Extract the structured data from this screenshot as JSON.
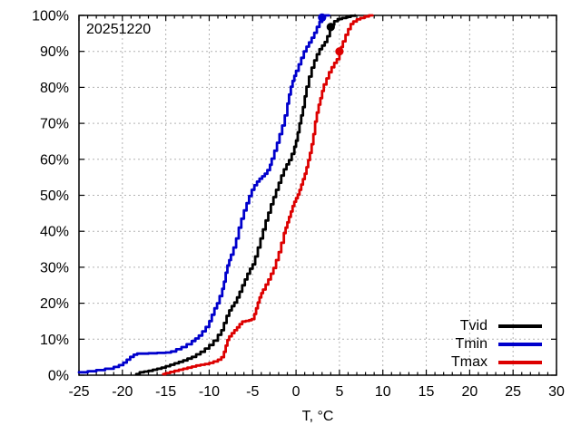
{
  "chart_data": {
    "type": "line",
    "title": "20251220",
    "xlabel": "T, °C",
    "ylabel": "",
    "xlim": [
      -25,
      30
    ],
    "ylim": [
      0,
      100
    ],
    "grid": true,
    "grid_color": "#b3b3b3",
    "axis_color": "#000000",
    "legend_position": "bottom-right",
    "x_tick_values": [
      -25,
      -20,
      -15,
      -10,
      -5,
      0,
      5,
      10,
      15,
      20,
      25,
      30
    ],
    "x_tick_labels": [
      "-25",
      "-20",
      "-15",
      "-10",
      "-5",
      "0",
      "5",
      "10",
      "15",
      "20",
      "25",
      "30"
    ],
    "x_minor_step": 1,
    "y_tick_values": [
      0,
      10,
      20,
      30,
      40,
      50,
      60,
      70,
      80,
      90,
      100
    ],
    "y_tick_labels": [
      "0%",
      "10%",
      "20%",
      "30%",
      "40%",
      "50%",
      "60%",
      "70%",
      "80%",
      "90%",
      "100%"
    ],
    "series": [
      {
        "name": "Tvid",
        "color": "#000000",
        "marker": {
          "t": 4.0,
          "pct": 96.8
        },
        "points": [
          [
            -18.4,
            0.3
          ],
          [
            -18,
            0.8
          ],
          [
            -17.5,
            1
          ],
          [
            -17,
            1.2
          ],
          [
            -16.5,
            1.5
          ],
          [
            -16,
            1.8
          ],
          [
            -15.5,
            2.1
          ],
          [
            -15,
            2.5
          ],
          [
            -14.5,
            2.9
          ],
          [
            -14,
            3.3
          ],
          [
            -13.5,
            3.7
          ],
          [
            -13,
            4.1
          ],
          [
            -12.5,
            4.6
          ],
          [
            -12,
            5.1
          ],
          [
            -11.5,
            5.8
          ],
          [
            -11,
            6.5
          ],
          [
            -10.5,
            7.4
          ],
          [
            -10,
            8.4
          ],
          [
            -9.5,
            9.6
          ],
          [
            -9,
            11.2
          ],
          [
            -8.6,
            12.5
          ],
          [
            -8.3,
            14.5
          ],
          [
            -8,
            16.5
          ],
          [
            -7.7,
            18
          ],
          [
            -7.4,
            19.2
          ],
          [
            -7.1,
            20.2
          ],
          [
            -6.8,
            21.6
          ],
          [
            -6.5,
            23.2
          ],
          [
            -6.2,
            25
          ],
          [
            -5.9,
            26.6
          ],
          [
            -5.6,
            28.2
          ],
          [
            -5.3,
            29.6
          ],
          [
            -5,
            30.8
          ],
          [
            -4.7,
            33
          ],
          [
            -4.4,
            35.5
          ],
          [
            -4.1,
            38
          ],
          [
            -3.8,
            40.5
          ],
          [
            -3.5,
            43
          ],
          [
            -3.2,
            45.2
          ],
          [
            -2.9,
            47.5
          ],
          [
            -2.6,
            49.5
          ],
          [
            -2.3,
            51.5
          ],
          [
            -2,
            53.5
          ],
          [
            -1.7,
            55.5
          ],
          [
            -1.4,
            57.2
          ],
          [
            -1.1,
            58.6
          ],
          [
            -0.8,
            59.8
          ],
          [
            -0.5,
            61.5
          ],
          [
            -0.2,
            63.5
          ],
          [
            0,
            65.2
          ],
          [
            0.2,
            67.5
          ],
          [
            0.4,
            70
          ],
          [
            0.6,
            72.2
          ],
          [
            0.8,
            74.5
          ],
          [
            1,
            77.5
          ],
          [
            1.2,
            80.2
          ],
          [
            1.5,
            83
          ],
          [
            1.8,
            85.5
          ],
          [
            2.1,
            87.5
          ],
          [
            2.4,
            89.2
          ],
          [
            2.7,
            90.6
          ],
          [
            3,
            91.6
          ],
          [
            3.3,
            92.6
          ],
          [
            3.6,
            94.2
          ],
          [
            3.9,
            96
          ],
          [
            4.1,
            97.4
          ],
          [
            4.4,
            98.4
          ],
          [
            4.8,
            99
          ],
          [
            5.3,
            99.3
          ],
          [
            5.8,
            99.6
          ],
          [
            6.3,
            99.9
          ],
          [
            6.8,
            100
          ]
        ]
      },
      {
        "name": "Tmin",
        "color": "#0000cc",
        "marker": {
          "t": 3.0,
          "pct": 99.4
        },
        "points": [
          [
            -25,
            0.8
          ],
          [
            -24,
            1.1
          ],
          [
            -23,
            1.4
          ],
          [
            -22,
            1.8
          ],
          [
            -21,
            2.3
          ],
          [
            -20.4,
            2.8
          ],
          [
            -19.9,
            3.5
          ],
          [
            -19.5,
            4.3
          ],
          [
            -19.1,
            5.1
          ],
          [
            -18.7,
            5.7
          ],
          [
            -18.3,
            6
          ],
          [
            -17,
            6.1
          ],
          [
            -16,
            6.2
          ],
          [
            -15,
            6.3
          ],
          [
            -14.4,
            6.6
          ],
          [
            -13.8,
            7.2
          ],
          [
            -13.2,
            7.8
          ],
          [
            -12.6,
            8.6
          ],
          [
            -12,
            9.5
          ],
          [
            -11.6,
            10.2
          ],
          [
            -11.2,
            11
          ],
          [
            -10.8,
            12.2
          ],
          [
            -10.4,
            13.4
          ],
          [
            -10,
            15
          ],
          [
            -9.7,
            16.8
          ],
          [
            -9.4,
            18.6
          ],
          [
            -9.1,
            20
          ],
          [
            -8.8,
            22
          ],
          [
            -8.5,
            24
          ],
          [
            -8.3,
            26
          ],
          [
            -8.1,
            28.5
          ],
          [
            -7.9,
            30.5
          ],
          [
            -7.7,
            32
          ],
          [
            -7.5,
            33.5
          ],
          [
            -7.2,
            35.5
          ],
          [
            -6.9,
            38
          ],
          [
            -6.6,
            41
          ],
          [
            -6.3,
            43.5
          ],
          [
            -6,
            45.8
          ],
          [
            -5.7,
            47.8
          ],
          [
            -5.4,
            49.8
          ],
          [
            -5.1,
            51.5
          ],
          [
            -4.8,
            52.8
          ],
          [
            -4.5,
            53.8
          ],
          [
            -4.2,
            54.6
          ],
          [
            -3.9,
            55.3
          ],
          [
            -3.6,
            56
          ],
          [
            -3.3,
            57
          ],
          [
            -3,
            58.5
          ],
          [
            -2.8,
            60.2
          ],
          [
            -2.5,
            62.4
          ],
          [
            -2.2,
            64.6
          ],
          [
            -1.9,
            67
          ],
          [
            -1.6,
            69.4
          ],
          [
            -1.3,
            72.2
          ],
          [
            -1,
            75.5
          ],
          [
            -0.8,
            78
          ],
          [
            -0.6,
            80.2
          ],
          [
            -0.4,
            81.8
          ],
          [
            -0.2,
            83.2
          ],
          [
            0,
            84.6
          ],
          [
            0.3,
            86.4
          ],
          [
            0.6,
            88.2
          ],
          [
            0.9,
            90
          ],
          [
            1.2,
            91.3
          ],
          [
            1.5,
            92.5
          ],
          [
            1.8,
            93.8
          ],
          [
            2.1,
            95.2
          ],
          [
            2.4,
            96.8
          ],
          [
            2.7,
            98.2
          ],
          [
            3,
            99.4
          ],
          [
            3.3,
            100
          ],
          [
            3.8,
            100
          ]
        ]
      },
      {
        "name": "Tmax",
        "color": "#dd0000",
        "marker": {
          "t": 5.0,
          "pct": 90
        },
        "points": [
          [
            -15.3,
            0.3
          ],
          [
            -15,
            0.6
          ],
          [
            -14.5,
            0.9
          ],
          [
            -14,
            1.2
          ],
          [
            -13.5,
            1.5
          ],
          [
            -13,
            1.8
          ],
          [
            -12.5,
            2.1
          ],
          [
            -12,
            2.4
          ],
          [
            -11.5,
            2.7
          ],
          [
            -11,
            2.9
          ],
          [
            -10.5,
            3.1
          ],
          [
            -10,
            3.4
          ],
          [
            -9.5,
            3.8
          ],
          [
            -9,
            4.3
          ],
          [
            -8.6,
            5
          ],
          [
            -8.3,
            6.5
          ],
          [
            -8.1,
            8.2
          ],
          [
            -7.9,
            9.8
          ],
          [
            -7.7,
            10.8
          ],
          [
            -7.4,
            11.7
          ],
          [
            -7.1,
            12.5
          ],
          [
            -6.8,
            13.3
          ],
          [
            -6.5,
            14.2
          ],
          [
            -6.2,
            14.9
          ],
          [
            -5.8,
            15.1
          ],
          [
            -5.4,
            15.3
          ],
          [
            -5.1,
            15.6
          ],
          [
            -4.8,
            17
          ],
          [
            -4.6,
            18.6
          ],
          [
            -4.4,
            20.2
          ],
          [
            -4.2,
            21.6
          ],
          [
            -4,
            22.8
          ],
          [
            -3.8,
            23.8
          ],
          [
            -3.5,
            25.2
          ],
          [
            -3.2,
            26.6
          ],
          [
            -2.9,
            28.2
          ],
          [
            -2.6,
            29.8
          ],
          [
            -2.3,
            32
          ],
          [
            -2,
            34.2
          ],
          [
            -1.7,
            36.8
          ],
          [
            -1.4,
            39.5
          ],
          [
            -1.2,
            41
          ],
          [
            -1,
            42.5
          ],
          [
            -0.8,
            44
          ],
          [
            -0.6,
            45.5
          ],
          [
            -0.4,
            47
          ],
          [
            -0.2,
            48.2
          ],
          [
            0,
            49.2
          ],
          [
            0.2,
            50.2
          ],
          [
            0.4,
            51.5
          ],
          [
            0.6,
            53
          ],
          [
            0.8,
            54.5
          ],
          [
            1,
            56
          ],
          [
            1.2,
            57.8
          ],
          [
            1.4,
            59.8
          ],
          [
            1.6,
            61.8
          ],
          [
            1.8,
            64.2
          ],
          [
            2,
            67
          ],
          [
            2.2,
            70.5
          ],
          [
            2.4,
            73
          ],
          [
            2.6,
            75.2
          ],
          [
            2.8,
            77
          ],
          [
            3,
            79
          ],
          [
            3.2,
            80.8
          ],
          [
            3.5,
            82.5
          ],
          [
            3.8,
            84.2
          ],
          [
            4.1,
            85.6
          ],
          [
            4.4,
            86.8
          ],
          [
            4.7,
            87.8
          ],
          [
            5,
            89.8
          ],
          [
            5.2,
            91.2
          ],
          [
            5.4,
            92.8
          ],
          [
            5.7,
            94.6
          ],
          [
            6,
            96.2
          ],
          [
            6.3,
            97.6
          ],
          [
            6.6,
            98.3
          ],
          [
            7,
            98.9
          ],
          [
            7.4,
            99.3
          ],
          [
            7.9,
            99.7
          ],
          [
            8.4,
            100
          ],
          [
            8.8,
            100
          ]
        ]
      }
    ]
  }
}
